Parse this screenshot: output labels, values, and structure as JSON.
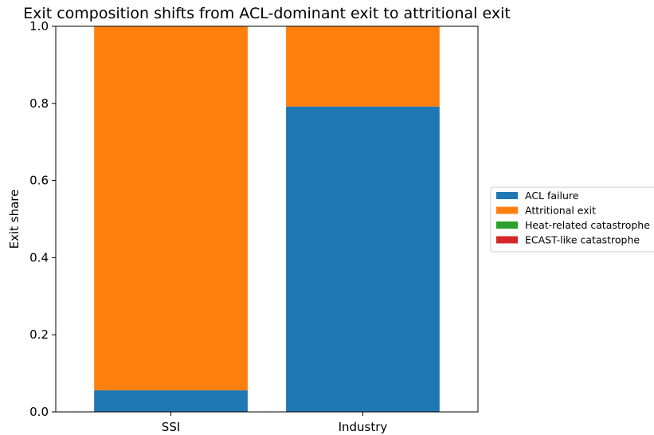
{
  "chart_data": {
    "type": "bar",
    "stacked": true,
    "title": "Exit composition shifts from ACL-dominant exit to attritional exit",
    "xlabel": "",
    "ylabel": "Exit share",
    "categories": [
      "SSI",
      "Industry"
    ],
    "ylim": [
      0,
      1.0
    ],
    "yticks": [
      "0.0",
      "0.2",
      "0.4",
      "0.6",
      "0.8",
      "1.0"
    ],
    "grid": false,
    "legend_position": "right",
    "series": [
      {
        "name": "ACL failure",
        "color": "#1f77b4",
        "values": [
          0.056,
          0.792
        ]
      },
      {
        "name": "Attritional exit",
        "color": "#ff7f0e",
        "values": [
          0.944,
          0.208
        ]
      },
      {
        "name": "Heat-related catastrophe",
        "color": "#2ca02c",
        "values": [
          0,
          0
        ]
      },
      {
        "name": "ECAST-like catastrophe",
        "color": "#d62728",
        "values": [
          0,
          0
        ]
      }
    ]
  }
}
